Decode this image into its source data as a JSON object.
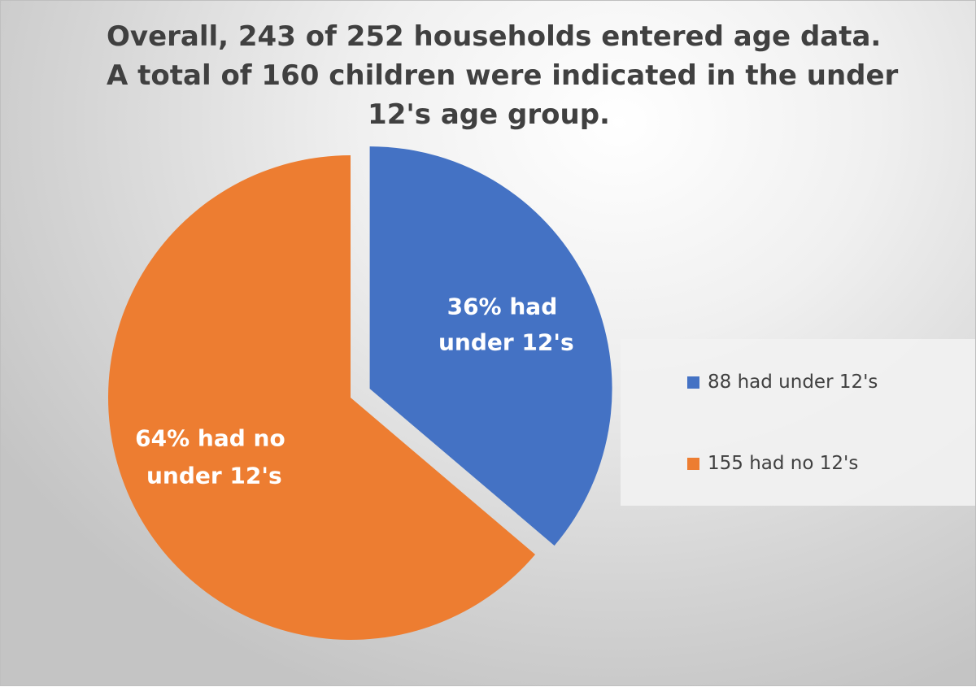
{
  "chart_data": {
    "type": "pie",
    "title_lines": [
      "Overall, 243 of 252 households entered age data.",
      "A total of 160 children were indicated in the under",
      "12's age group."
    ],
    "slices": [
      {
        "legend_label": "88 had under 12's",
        "value": 88,
        "percent": 36,
        "data_label_lines": [
          "36% had",
          "under 12's"
        ],
        "color": "#4472C4",
        "exploded": true
      },
      {
        "legend_label": "155 had no 12's",
        "value": 155,
        "percent": 64,
        "data_label_lines": [
          "64% had no",
          "under 12's"
        ],
        "color": "#ED7D31",
        "exploded": false
      }
    ],
    "legend_position": "right"
  }
}
